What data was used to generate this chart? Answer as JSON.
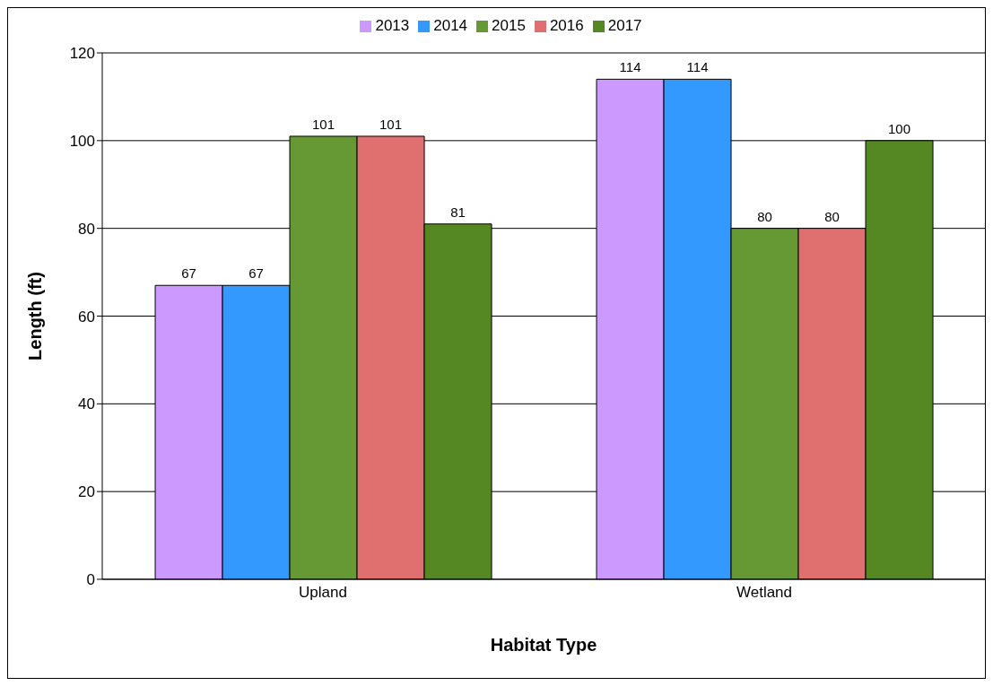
{
  "chart_data": {
    "type": "bar",
    "xlabel": "Habitat Type",
    "ylabel": "Length (ft)",
    "categories": [
      "Upland",
      "Wetland"
    ],
    "series": [
      {
        "name": "2013",
        "color": "#cc99ff",
        "values": [
          67,
          114
        ]
      },
      {
        "name": "2014",
        "color": "#3399ff",
        "values": [
          67,
          114
        ]
      },
      {
        "name": "2015",
        "color": "#669933",
        "values": [
          101,
          80
        ]
      },
      {
        "name": "2016",
        "color": "#e07070",
        "values": [
          101,
          80
        ]
      },
      {
        "name": "2017",
        "color": "#558822",
        "values": [
          81,
          100
        ]
      }
    ],
    "ylim": [
      0,
      120
    ],
    "yticks": [
      0,
      20,
      40,
      60,
      80,
      100,
      120
    ],
    "grid": "y",
    "legend": "top",
    "data_labels": true
  }
}
